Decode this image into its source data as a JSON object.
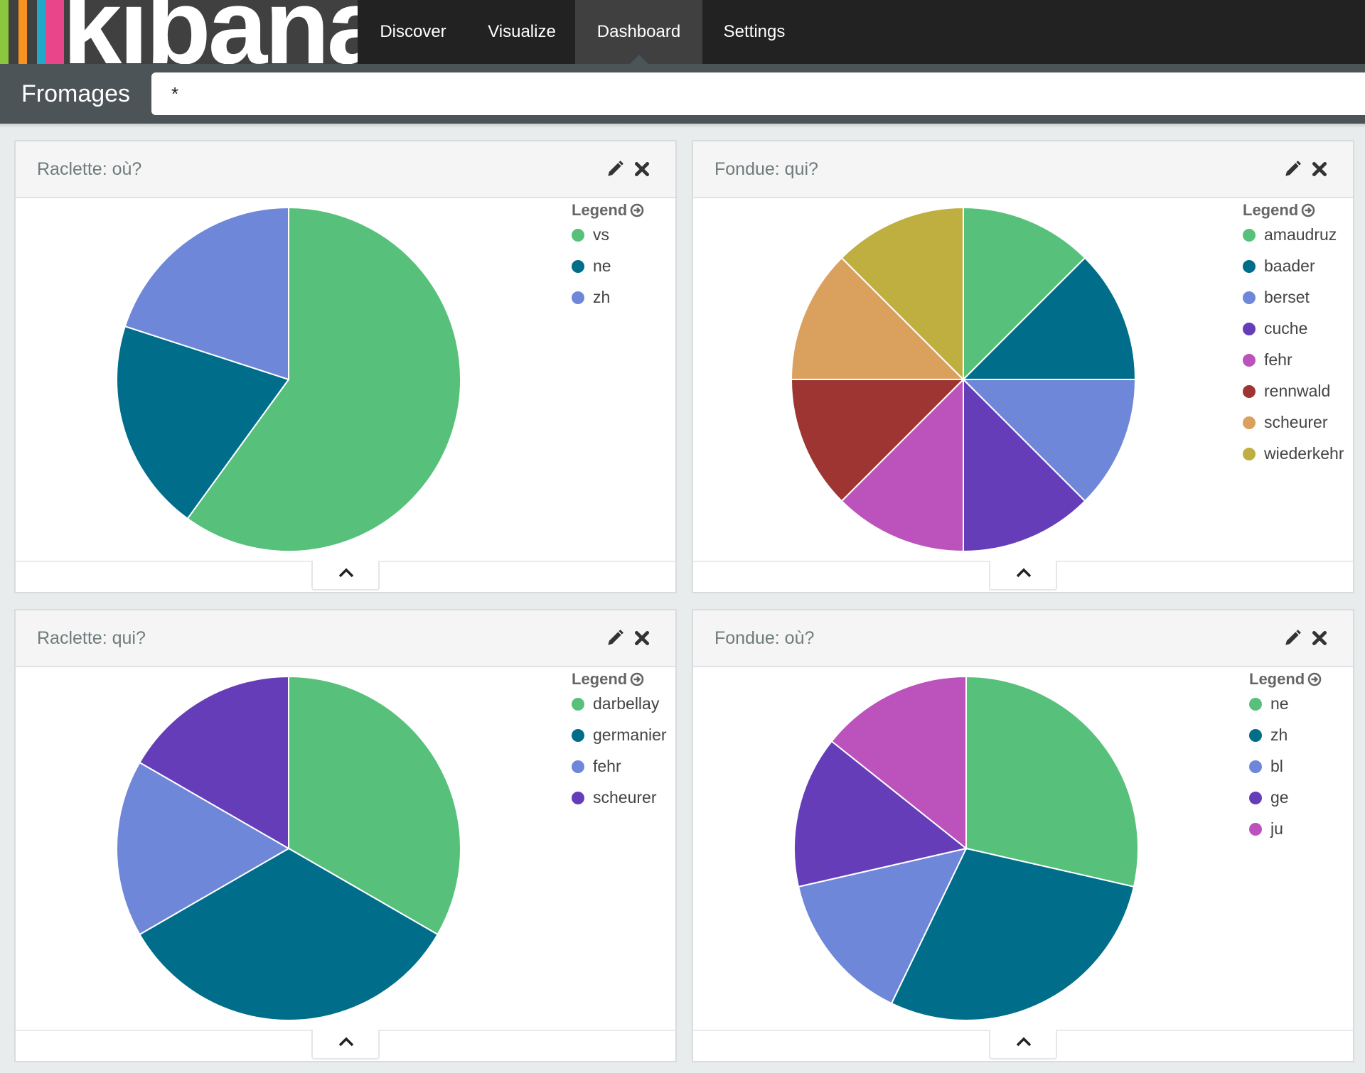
{
  "app": {
    "logo_text": "kibana",
    "logo_colors": [
      "#8cc63f",
      "#404040",
      "#f7931e",
      "#22a7c9",
      "#e9458a"
    ]
  },
  "nav": {
    "tabs": [
      {
        "label": "Discover",
        "active": false
      },
      {
        "label": "Visualize",
        "active": false
      },
      {
        "label": "Dashboard",
        "active": true
      },
      {
        "label": "Settings",
        "active": false
      }
    ]
  },
  "dashboard": {
    "title": "Fromages",
    "query": "*"
  },
  "legend_heading": "Legend",
  "chart_data": [
    {
      "type": "pie",
      "title": "Raclette: où?",
      "categories": [
        "vs",
        "ne",
        "zh"
      ],
      "values": [
        60,
        20,
        20
      ],
      "colors": [
        "#57c17b",
        "#006e8a",
        "#6f87d8"
      ]
    },
    {
      "type": "pie",
      "title": "Fondue: qui?",
      "categories": [
        "amaudruz",
        "baader",
        "berset",
        "cuche",
        "fehr",
        "rennwald",
        "scheurer",
        "wiederkehr"
      ],
      "values": [
        1,
        1,
        1,
        1,
        1,
        1,
        1,
        1
      ],
      "colors": [
        "#57c17b",
        "#006e8a",
        "#6f87d8",
        "#663db8",
        "#bc52bc",
        "#9e3533",
        "#daa05d",
        "#bfaf40"
      ]
    },
    {
      "type": "pie",
      "title": "Raclette: qui?",
      "categories": [
        "darbellay",
        "germanier",
        "fehr",
        "scheurer"
      ],
      "values": [
        2,
        2,
        1,
        1
      ],
      "colors": [
        "#57c17b",
        "#006e8a",
        "#6f87d8",
        "#663db8"
      ]
    },
    {
      "type": "pie",
      "title": "Fondue: où?",
      "categories": [
        "ne",
        "zh",
        "bl",
        "ge",
        "ju"
      ],
      "values": [
        2,
        2,
        1,
        1,
        1
      ],
      "colors": [
        "#57c17b",
        "#006e8a",
        "#6f87d8",
        "#663db8",
        "#bc52bc"
      ]
    }
  ]
}
